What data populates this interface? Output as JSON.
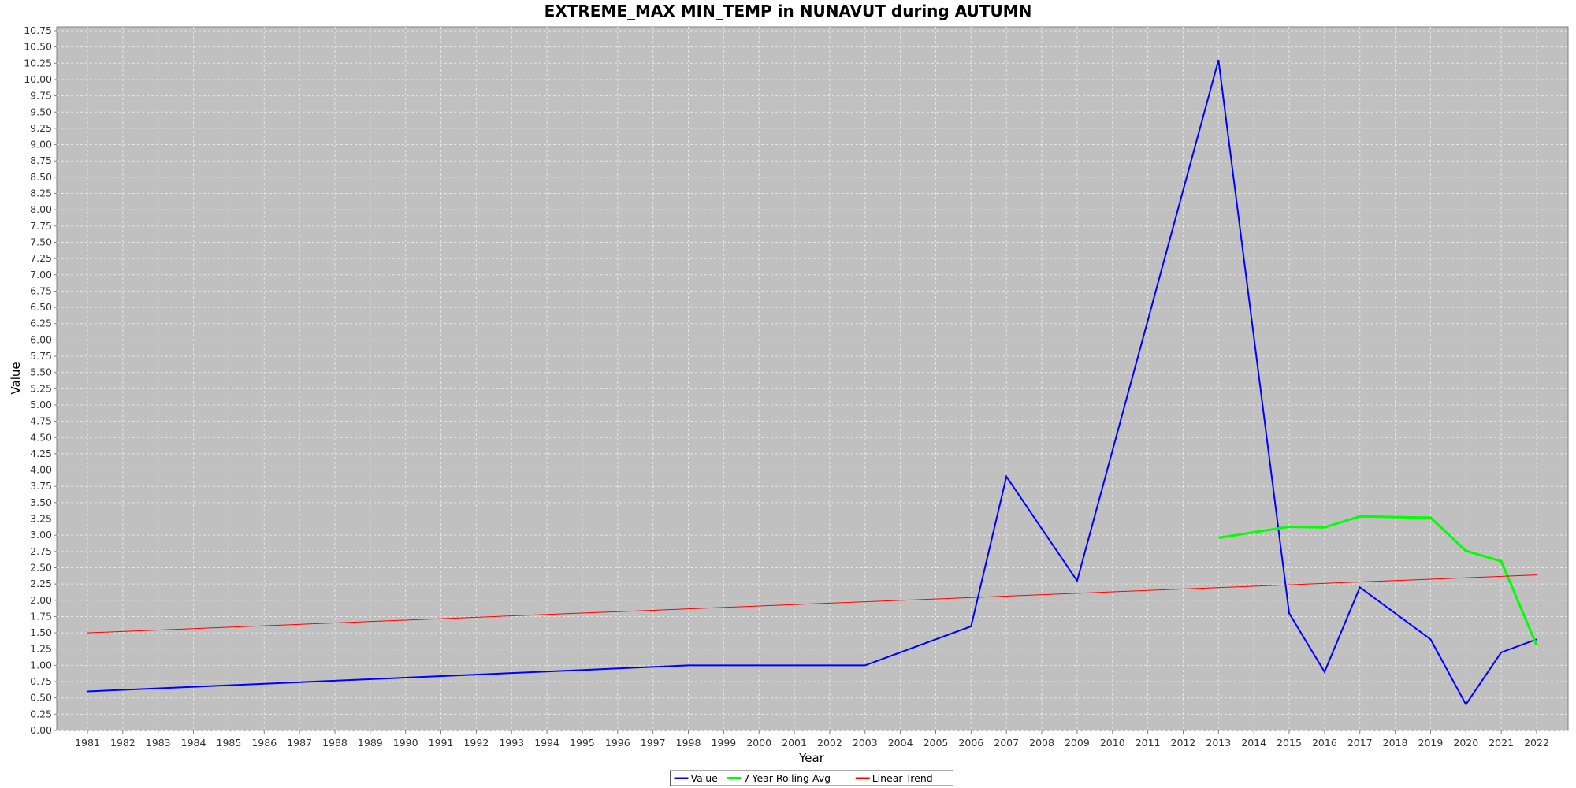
{
  "chart_data": {
    "type": "line",
    "title": "EXTREME_MAX MIN_TEMP in NUNAVUT during AUTUMN",
    "xlabel": "Year",
    "ylabel": "Value",
    "xlim": [
      1981,
      2022
    ],
    "ylim": [
      0,
      10.75
    ],
    "ytick_step": 0.25,
    "grid": true,
    "legend_position": "bottom-center",
    "colors": {
      "plot_background": "#c0c0c0",
      "grid": "#e6e6e6",
      "axis": "#808080"
    },
    "x_tick_labels": [
      "1981",
      "1982",
      "1983",
      "1984",
      "1985",
      "1986",
      "1987",
      "1988",
      "1989",
      "1990",
      "1991",
      "1992",
      "1993",
      "1994",
      "1995",
      "1996",
      "1997",
      "1998",
      "1999",
      "2000",
      "2001",
      "2002",
      "2003",
      "2004",
      "2005",
      "2006",
      "2007",
      "2008",
      "2009",
      "2010",
      "2011",
      "2012",
      "2013",
      "2014",
      "2015",
      "2016",
      "2017",
      "2018",
      "2019",
      "2020",
      "2021",
      "2022"
    ],
    "y_tick_labels": [
      "0.00",
      "0.25",
      "0.50",
      "0.75",
      "1.00",
      "1.25",
      "1.50",
      "1.75",
      "2.00",
      "2.25",
      "2.50",
      "2.75",
      "3.00",
      "3.25",
      "3.50",
      "3.75",
      "4.00",
      "4.25",
      "4.50",
      "4.75",
      "5.00",
      "5.25",
      "5.50",
      "5.75",
      "6.00",
      "6.25",
      "6.50",
      "6.75",
      "7.00",
      "7.25",
      "7.50",
      "7.75",
      "8.00",
      "8.25",
      "8.50",
      "8.75",
      "9.00",
      "9.25",
      "9.50",
      "9.75",
      "10.00",
      "10.25",
      "10.50",
      "10.75"
    ],
    "series": [
      {
        "name": "Value",
        "color": "#0000ff",
        "stroke_width": 2,
        "points": [
          [
            1981,
            0.6
          ],
          [
            1998,
            1.0
          ],
          [
            2003,
            1.0
          ],
          [
            2006,
            1.6
          ],
          [
            2007,
            3.9
          ],
          [
            2009,
            2.3
          ],
          [
            2013,
            10.3
          ],
          [
            2015,
            1.8
          ],
          [
            2016,
            0.9
          ],
          [
            2017,
            2.2
          ],
          [
            2019,
            1.4
          ],
          [
            2020,
            0.4
          ],
          [
            2021,
            1.2
          ],
          [
            2022,
            1.4
          ]
        ]
      },
      {
        "name": "7-Year Rolling Avg",
        "color": "#00ff00",
        "stroke_width": 3,
        "points": [
          [
            2013,
            2.96
          ],
          [
            2015,
            3.13
          ],
          [
            2016,
            3.12
          ],
          [
            2017,
            3.29
          ],
          [
            2019,
            3.27
          ],
          [
            2020,
            2.76
          ],
          [
            2021,
            2.6
          ],
          [
            2022,
            1.31
          ]
        ]
      },
      {
        "name": "Linear Trend",
        "color": "#ff0000",
        "stroke_width": 1,
        "points": [
          [
            1981,
            1.5
          ],
          [
            2022,
            2.39
          ]
        ]
      }
    ]
  }
}
